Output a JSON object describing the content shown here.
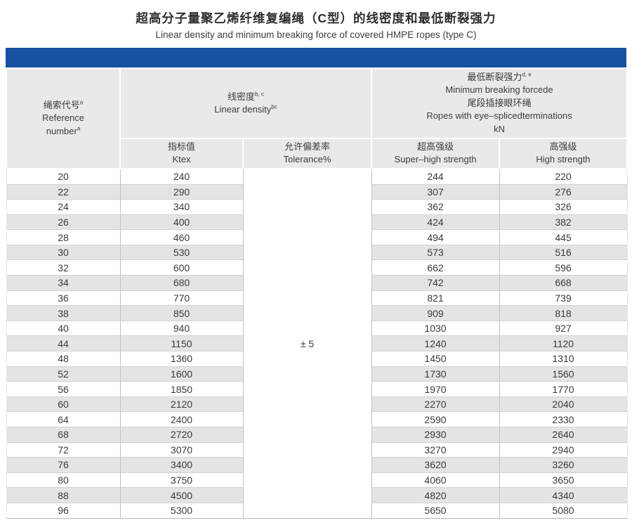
{
  "page": {
    "title_zh": "超高分子量聚乙烯纤维复编绳（C型）的线密度和最低断裂强力",
    "title_en": "Linear density and minimum breaking force of covered HMPE ropes (type C)"
  },
  "colors": {
    "accent_blue": "#1551a0",
    "header_bg": "#e9e9e9",
    "row_alt_bg": "#e4e4e4"
  },
  "table": {
    "header": {
      "reference": {
        "zh": "绳索代号",
        "zh_sup": "a",
        "en_line1": "Reference",
        "en_line2": "number",
        "en_sup": "a"
      },
      "linear_density": {
        "zh": "线密度",
        "zh_sup": "b, c",
        "en": "Linear density",
        "en_sup": "bc"
      },
      "breaking_force": {
        "zh": "最低断裂强力",
        "zh_sup": "d, e",
        "en": "Minimum breaking forcede",
        "zh2": "尾段插接眼环绳",
        "en2": "Ropes with eye–splicedterminations",
        "unit": "kN"
      },
      "sub": {
        "ktex_zh": "指标值",
        "ktex_en": "Ktex",
        "tolerance_zh": "允许偏差率",
        "tolerance_en": "Tolerance%",
        "super_high_zh": "超高强级",
        "super_high_en": "Super–high strength",
        "high_zh": "高强级",
        "high_en": "High strength"
      }
    },
    "tolerance_value": "± 5",
    "columns": [
      "reference_number",
      "ktex",
      "tolerance_percent",
      "super_high_strength_kN",
      "high_strength_kN"
    ],
    "rows": [
      [
        20,
        240,
        244,
        220
      ],
      [
        22,
        290,
        307,
        276
      ],
      [
        24,
        340,
        362,
        326
      ],
      [
        26,
        400,
        424,
        382
      ],
      [
        28,
        460,
        494,
        445
      ],
      [
        30,
        530,
        573,
        516
      ],
      [
        32,
        600,
        662,
        596
      ],
      [
        34,
        680,
        742,
        668
      ],
      [
        36,
        770,
        821,
        739
      ],
      [
        38,
        850,
        909,
        818
      ],
      [
        40,
        940,
        1030,
        927
      ],
      [
        44,
        1150,
        1240,
        1120
      ],
      [
        48,
        1360,
        1450,
        1310
      ],
      [
        52,
        1600,
        1730,
        1560
      ],
      [
        56,
        1850,
        1970,
        1770
      ],
      [
        60,
        2120,
        2270,
        2040
      ],
      [
        64,
        2400,
        2590,
        2330
      ],
      [
        68,
        2720,
        2930,
        2640
      ],
      [
        72,
        3070,
        3270,
        2940
      ],
      [
        76,
        3400,
        3620,
        3260
      ],
      [
        80,
        3750,
        4060,
        3650
      ],
      [
        88,
        4500,
        4820,
        4340
      ],
      [
        96,
        5300,
        5650,
        5080
      ]
    ]
  }
}
